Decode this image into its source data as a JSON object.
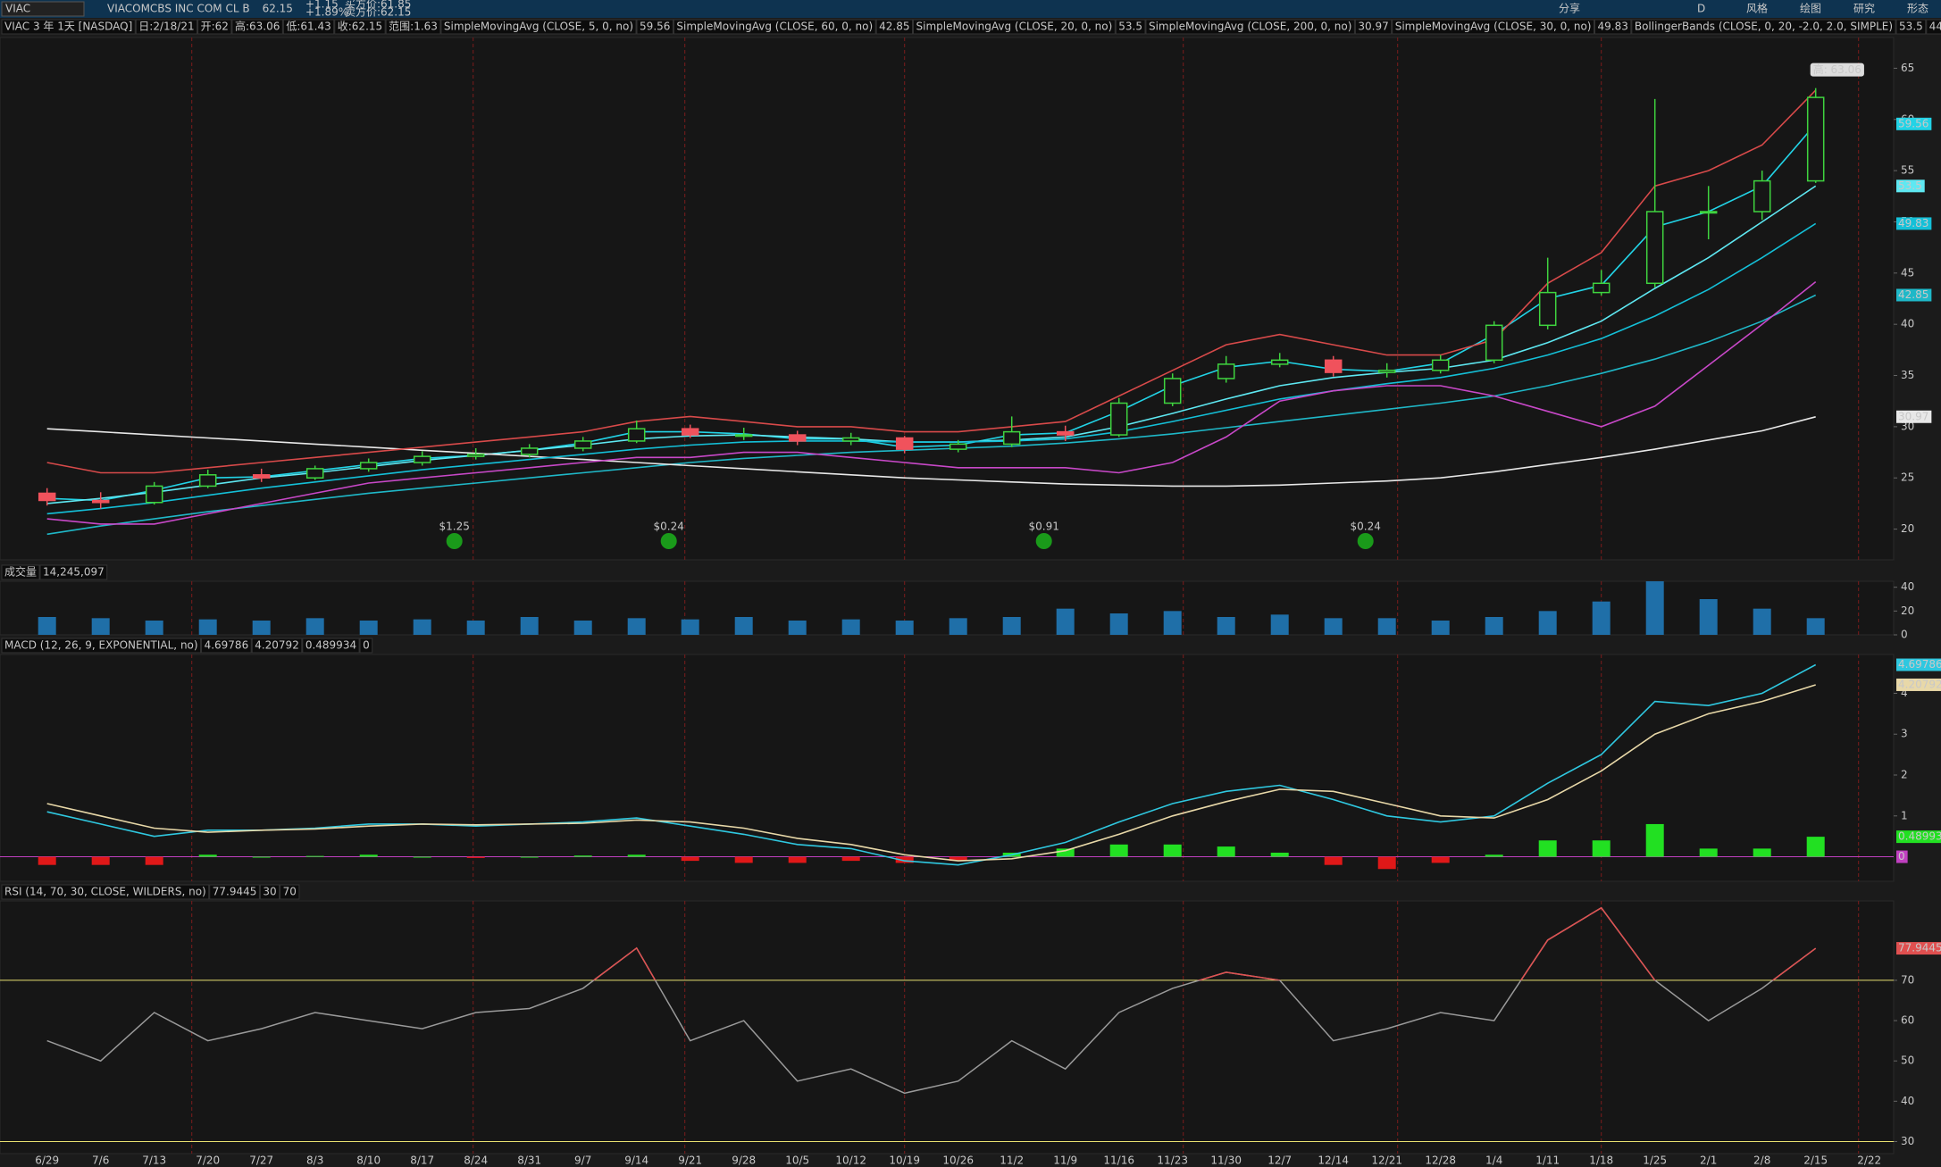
{
  "toolbar": {
    "symbol": "VIAC",
    "company": "VIACOMCBS INC COM CL B",
    "last": 62.15,
    "change": "+1.15",
    "change_pct": "+1.89%",
    "bid": "买方价:61.85",
    "ask": "卖方价:62.15",
    "buttons": [
      "分享",
      "D",
      "风格",
      "绘图",
      "研究",
      "形态"
    ]
  },
  "chart_data": [
    {
      "type": "candlestick",
      "title": "VIAC 3 年 1天 [NASDAQ]",
      "info": [
        "日:2/18/21",
        "开:62",
        "高:63.06",
        "低:61.43",
        "收:62.15",
        "范围:1.63"
      ],
      "categories": [
        "6/29",
        "7/6",
        "7/13",
        "7/20",
        "7/27",
        "8/3",
        "8/10",
        "8/17",
        "8/24",
        "8/31",
        "9/7",
        "9/14",
        "9/21",
        "9/28",
        "10/5",
        "10/12",
        "10/19",
        "10/26",
        "11/2",
        "11/9",
        "11/16",
        "11/23",
        "11/30",
        "12/7",
        "12/14",
        "12/21",
        "12/28",
        "1/4",
        "1/11",
        "1/18",
        "1/25",
        "2/1",
        "2/8",
        "2/15",
        "2/22"
      ],
      "ohlc": {
        "open": [
          23.5,
          22.8,
          22.6,
          24.2,
          25.3,
          25.0,
          25.9,
          26.5,
          27.1,
          27.3,
          27.9,
          28.6,
          29.8,
          29.2,
          29.2,
          28.6,
          28.9,
          27.8,
          28.3,
          29.5,
          29.2,
          32.3,
          34.7,
          36.1,
          36.5,
          35.3,
          35.5,
          36.5,
          39.9,
          43.1,
          44.0,
          51.0,
          51.0,
          54.0,
          null
        ],
        "high": [
          24.0,
          23.6,
          24.6,
          25.8,
          25.9,
          26.2,
          26.9,
          27.6,
          27.9,
          28.3,
          29.0,
          30.6,
          30.2,
          29.9,
          29.6,
          29.4,
          29.1,
          28.7,
          31.0,
          30.1,
          32.8,
          35.2,
          36.9,
          37.2,
          36.9,
          36.2,
          37.0,
          40.3,
          46.5,
          45.3,
          62.0,
          53.5,
          55.0,
          63.06,
          null
        ],
        "low": [
          22.3,
          22.0,
          22.4,
          24.0,
          24.6,
          24.8,
          25.6,
          26.2,
          26.8,
          27.0,
          27.6,
          28.4,
          28.9,
          28.7,
          28.2,
          28.2,
          27.4,
          27.5,
          28.0,
          28.6,
          29.0,
          32.0,
          34.3,
          35.8,
          34.9,
          34.8,
          35.2,
          36.2,
          39.5,
          42.8,
          43.6,
          48.3,
          50.2,
          53.8,
          null
        ],
        "close": [
          22.8,
          22.6,
          24.2,
          25.3,
          25.0,
          25.9,
          26.5,
          27.1,
          27.3,
          27.9,
          28.6,
          29.8,
          29.2,
          29.2,
          28.6,
          28.9,
          27.8,
          28.3,
          29.5,
          29.2,
          32.3,
          34.7,
          36.1,
          36.5,
          35.3,
          35.5,
          36.5,
          39.9,
          43.1,
          44.0,
          51.0,
          51.0,
          54.0,
          62.15,
          null
        ]
      },
      "up_color": "#3fd43f",
      "down_color": "#f0525c",
      "series": [
        {
          "name": "SimpleMovingAvg (CLOSE, 5, 0, no)",
          "color": "#22d3e6",
          "values": [
            23.0,
            22.8,
            23.8,
            25.0,
            25.1,
            25.7,
            26.3,
            26.9,
            27.2,
            27.7,
            28.4,
            29.5,
            29.5,
            29.3,
            28.8,
            28.8,
            28.0,
            28.2,
            29.2,
            29.4,
            31.5,
            34.0,
            35.8,
            36.4,
            35.6,
            35.4,
            36.2,
            39.0,
            42.5,
            43.8,
            49.5,
            51.0,
            53.5,
            59.56,
            null
          ]
        },
        {
          "name": "SimpleMovingAvg (CLOSE, 60, 0, no)",
          "color": "#1fb8c8",
          "values": [
            19.5,
            20.3,
            21.0,
            21.7,
            22.3,
            22.9,
            23.5,
            24.0,
            24.5,
            25.0,
            25.5,
            26.0,
            26.5,
            26.9,
            27.2,
            27.5,
            27.7,
            27.9,
            28.1,
            28.4,
            28.8,
            29.3,
            29.9,
            30.5,
            31.1,
            31.7,
            32.3,
            33.0,
            34.0,
            35.2,
            36.6,
            38.3,
            40.3,
            42.85,
            null
          ]
        },
        {
          "name": "SimpleMovingAvg (CLOSE, 20, 0, no)",
          "color": "#5ee8f2",
          "values": [
            22.5,
            23.0,
            23.6,
            24.3,
            25.0,
            25.5,
            26.1,
            26.7,
            27.2,
            27.7,
            28.2,
            28.8,
            29.1,
            29.2,
            29.0,
            28.8,
            28.5,
            28.5,
            28.7,
            29.0,
            30.0,
            31.3,
            32.7,
            34.0,
            34.8,
            35.3,
            35.7,
            36.5,
            38.2,
            40.3,
            43.5,
            46.5,
            50.0,
            53.5,
            null
          ]
        },
        {
          "name": "SimpleMovingAvg (CLOSE, 200, 0, no)",
          "color": "#e8e8e8",
          "values": [
            29.8,
            29.5,
            29.2,
            28.9,
            28.6,
            28.3,
            28.0,
            27.7,
            27.4,
            27.1,
            26.8,
            26.5,
            26.2,
            25.9,
            25.6,
            25.3,
            25.0,
            24.8,
            24.6,
            24.4,
            24.3,
            24.2,
            24.2,
            24.3,
            24.5,
            24.7,
            25.0,
            25.6,
            26.3,
            27.0,
            27.8,
            28.7,
            29.6,
            30.97,
            null
          ]
        },
        {
          "name": "SimpleMovingAvg (CLOSE, 30, 0, no)",
          "color": "#14c0d8",
          "values": [
            21.5,
            22.0,
            22.6,
            23.3,
            24.0,
            24.6,
            25.2,
            25.8,
            26.3,
            26.8,
            27.3,
            27.8,
            28.2,
            28.5,
            28.6,
            28.6,
            28.5,
            28.5,
            28.6,
            28.8,
            29.5,
            30.5,
            31.6,
            32.7,
            33.5,
            34.2,
            34.8,
            35.7,
            37.0,
            38.6,
            40.8,
            43.4,
            46.5,
            49.83,
            null
          ]
        },
        {
          "color": "#d84a4a",
          "values": [
            26.5,
            25.5,
            25.5,
            26.0,
            26.5,
            27.0,
            27.5,
            28.0,
            28.5,
            29.0,
            29.5,
            30.5,
            31.0,
            30.5,
            30.0,
            30.0,
            29.5,
            29.5,
            30.0,
            30.5,
            33.0,
            35.5,
            38.0,
            39.0,
            38.0,
            37.0,
            37.0,
            38.5,
            44.0,
            47.0,
            53.5,
            55.0,
            57.5,
            62.86,
            null
          ]
        },
        {
          "color": "#c848c8",
          "values": [
            21.0,
            20.5,
            20.5,
            21.5,
            22.5,
            23.5,
            24.5,
            25.0,
            25.5,
            26.0,
            26.5,
            27.0,
            27.0,
            27.5,
            27.5,
            27.0,
            26.5,
            26.0,
            26.0,
            26.0,
            25.5,
            26.5,
            29.0,
            32.5,
            33.5,
            34.0,
            34.0,
            33.0,
            31.5,
            30.0,
            32.0,
            36.0,
            40.0,
            44.15,
            null
          ]
        }
      ],
      "bollinger": {
        "label": "BollingerBands (CLOSE, 0, 20, -2.0, 2.0, SIMPLE)",
        "mid": 53.5
      },
      "ylim": [
        17,
        68
      ],
      "yticks": [
        20,
        25,
        30,
        35,
        40,
        45,
        50,
        55,
        60,
        65
      ],
      "high_label": "高: 63.06",
      "events": [
        {
          "label": "$1.25",
          "at": "8/17"
        },
        {
          "label": "$0.24",
          "at": "9/14"
        },
        {
          "label": "$0.91",
          "at": "11/2"
        },
        {
          "label": "$0.24",
          "at": "12/14"
        }
      ]
    },
    {
      "type": "bar",
      "title": "成交量",
      "header_value": "14,245,097",
      "color": "#1f6fa8",
      "values": [
        15,
        14,
        12,
        13,
        12,
        14,
        12,
        13,
        12,
        15,
        12,
        14,
        13,
        15,
        12,
        13,
        12,
        14,
        15,
        22,
        18,
        20,
        15,
        17,
        14,
        14,
        12,
        15,
        20,
        28,
        45,
        30,
        22,
        14,
        null
      ],
      "ylim": [
        0,
        45
      ],
      "yticks": [
        0,
        20,
        40
      ]
    },
    {
      "type": "macd",
      "title": "MACD (12, 26, 9, EXPONENTIAL, no)",
      "up_color": "#22e022",
      "down_color": "#e01818",
      "zero_line": 0,
      "zero_color": "#c040c0",
      "series": [
        {
          "color": "#2fc8e0",
          "values": [
            1.1,
            0.8,
            0.5,
            0.65,
            0.65,
            0.7,
            0.8,
            0.8,
            0.75,
            0.8,
            0.85,
            0.95,
            0.75,
            0.55,
            0.3,
            0.2,
            -0.1,
            -0.2,
            0.05,
            0.35,
            0.85,
            1.3,
            1.6,
            1.75,
            1.4,
            1.0,
            0.85,
            1.0,
            1.8,
            2.5,
            3.8,
            3.7,
            4.0,
            4.69786,
            null
          ]
        },
        {
          "color": "#e8d8a8",
          "values": [
            1.3,
            1.0,
            0.7,
            0.6,
            0.65,
            0.68,
            0.75,
            0.8,
            0.78,
            0.8,
            0.82,
            0.9,
            0.85,
            0.7,
            0.45,
            0.3,
            0.05,
            -0.1,
            -0.05,
            0.15,
            0.55,
            1.0,
            1.35,
            1.65,
            1.6,
            1.3,
            1.0,
            0.95,
            1.4,
            2.1,
            3.0,
            3.5,
            3.8,
            4.20792,
            null
          ]
        }
      ],
      "histogram": [
        -0.2,
        -0.2,
        -0.2,
        0.05,
        0,
        0.02,
        0.05,
        0,
        -0.03,
        0,
        0.03,
        0.05,
        -0.1,
        -0.15,
        -0.15,
        -0.1,
        -0.15,
        -0.1,
        0.1,
        0.2,
        0.3,
        0.3,
        0.25,
        0.1,
        -0.2,
        -0.3,
        -0.15,
        0.05,
        0.4,
        0.4,
        0.8,
        0.2,
        0.2,
        0.489934,
        null
      ],
      "ylim": [
        -0.6,
        4.95
      ],
      "yticks": [
        1,
        2,
        3,
        4
      ]
    },
    {
      "type": "rsi",
      "title": "RSI (14, 70, 30, CLOSE, WILDERS, no)",
      "color": "#9a9a9a",
      "over_color": "#e05050",
      "line_color": "#e8e070",
      "values": [
        55,
        50,
        62,
        55,
        58,
        62,
        60,
        58,
        62,
        63,
        68,
        78,
        55,
        60,
        45,
        48,
        42,
        45,
        55,
        48,
        62,
        68,
        72,
        70,
        55,
        58,
        62,
        60,
        80,
        88,
        70,
        60,
        68,
        77.9445,
        null
      ],
      "thresholds": [
        30,
        70
      ],
      "ylim": [
        27,
        89.7
      ],
      "yticks": [
        30,
        40,
        50,
        60,
        70
      ]
    }
  ]
}
